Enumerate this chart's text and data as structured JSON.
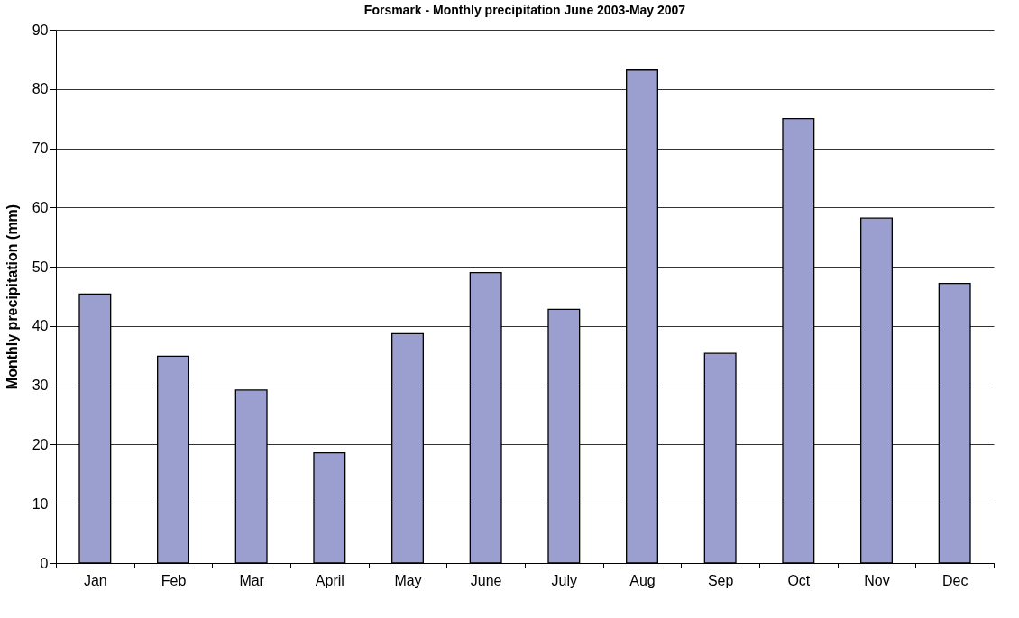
{
  "chart_data": {
    "type": "bar",
    "title": "Forsmark - Monthly precipitation June 2003-May 2007",
    "ylabel": "Monthly precipitation (mm)",
    "categories": [
      "Jan",
      "Feb",
      "Mar",
      "April",
      "May",
      "June",
      "July",
      "Aug",
      "Sep",
      "Oct",
      "Nov",
      "Dec"
    ],
    "values": [
      45.4,
      34.9,
      29.2,
      18.6,
      38.7,
      49.0,
      42.8,
      83.2,
      35.4,
      75.0,
      58.2,
      47.2
    ],
    "color": "#9a9fd0",
    "ylim": [
      0,
      90
    ],
    "yticks": [
      0,
      10,
      20,
      30,
      40,
      50,
      60,
      70,
      80,
      90
    ],
    "grid": "y"
  }
}
